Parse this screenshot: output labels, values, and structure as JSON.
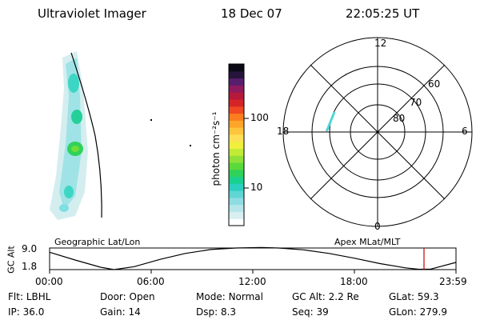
{
  "header": {
    "instrument": "Ultraviolet Imager",
    "date": "18 Dec 07",
    "time": "22:05:25 UT"
  },
  "colorbar": {
    "label": "photon cm⁻²s⁻¹",
    "ticks": [
      "100",
      "10"
    ],
    "colors": [
      "#ffffff",
      "#d9eef0",
      "#b6e6ea",
      "#8fdde2",
      "#5fd6d4",
      "#2ccfc0",
      "#19d08f",
      "#2fd25a",
      "#5cd93a",
      "#8fe13a",
      "#c2eb36",
      "#f0f03c",
      "#fde058",
      "#fec53c",
      "#fca52a",
      "#fb7d1e",
      "#ef4823",
      "#d52427",
      "#b51a3a",
      "#8f1a5e",
      "#571e6e",
      "#27143c",
      "#0a0a14"
    ]
  },
  "polar": {
    "labels": {
      "top": "12",
      "left": "18",
      "right": "6",
      "bottom": "0"
    },
    "rings": [
      "60",
      "70",
      "80"
    ]
  },
  "timeline": {
    "left_title": "Geographic Lat/Lon",
    "right_title": "Apex MLat/MLT",
    "ylabel": "GC Alt",
    "yticks": [
      "9.0",
      "1.8"
    ],
    "xticks": [
      "00:00",
      "06:00",
      "12:00",
      "18:00",
      "23:59"
    ]
  },
  "footer": {
    "row1": [
      {
        "label": "Flt:",
        "value": "LBHL"
      },
      {
        "label": "Door:",
        "value": "Open"
      },
      {
        "label": "Mode:",
        "value": "Normal"
      },
      {
        "label": "GC Alt:",
        "value": "2.2 Re"
      },
      {
        "label": "GLat:",
        "value": "59.3"
      }
    ],
    "row2": [
      {
        "label": "IP:",
        "value": "36.0"
      },
      {
        "label": "Gain:",
        "value": "14"
      },
      {
        "label": "Dsp:",
        "value": "8.3"
      },
      {
        "label": "Seq:",
        "value": "39"
      },
      {
        "label": "GLon:",
        "value": "279.9"
      }
    ]
  },
  "chart_data": {
    "type": "line",
    "xlabel": "",
    "ylabel": "GC Alt",
    "ylim": [
      1.8,
      9.0
    ],
    "xlim": [
      0,
      23.98
    ],
    "series": [
      {
        "x": [
          0,
          1.5,
          3.0,
          3.8,
          5.0,
          6.5,
          8.0,
          9.5,
          11.0,
          12.5,
          13.5,
          15.0,
          16.5,
          18.0,
          19.5,
          21.0,
          21.8,
          22.5,
          23.98
        ],
        "values": [
          7.6,
          5.0,
          2.6,
          1.8,
          2.8,
          5.2,
          7.2,
          8.5,
          9.0,
          9.2,
          9.0,
          8.4,
          7.2,
          5.6,
          3.8,
          2.4,
          1.9,
          2.0,
          4.2
        ]
      }
    ],
    "current_time_marker": 22.09
  }
}
